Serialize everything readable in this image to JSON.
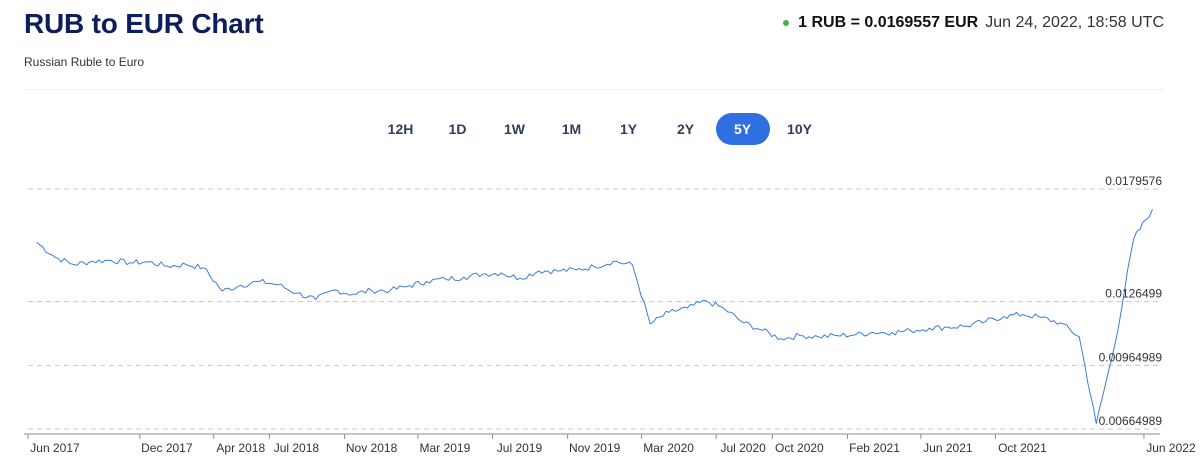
{
  "header": {
    "title": "RUB to EUR Chart",
    "subtitle": "Russian Ruble to Euro",
    "rate_text": "1 RUB = 0.0169557 EUR",
    "timestamp": "Jun 24, 2022, 18:58 UTC",
    "status_color": "#3db34a"
  },
  "ranges": {
    "items": [
      "12H",
      "1D",
      "1W",
      "1M",
      "1Y",
      "2Y",
      "5Y",
      "10Y"
    ],
    "active": "5Y"
  },
  "chart_data": {
    "type": "line",
    "line_color": "#3b7ddd",
    "grid": "horizontal-dashed",
    "y_labels": [
      "0.0179576",
      "0.0126499",
      "0.00964989",
      "0.00664989"
    ],
    "y_values": [
      0.0179576,
      0.0126499,
      0.00964989,
      0.00664989
    ],
    "x_ticks": [
      "Jun 2017",
      "Dec 2017",
      "Apr 2018",
      "Jul 2018",
      "Nov 2018",
      "Mar 2019",
      "Jul 2019",
      "Nov 2019",
      "Mar 2020",
      "Jul 2020",
      "Oct 2020",
      "Feb 2021",
      "Jun 2021",
      "Oct 2021",
      "Jun 2022"
    ],
    "series": [
      {
        "x": [
          "2017-06",
          "2017-07",
          "2017-08",
          "2017-09",
          "2017-10",
          "2017-11",
          "2017-12",
          "2018-01",
          "2018-02",
          "2018-03",
          "2018-04",
          "2018-05",
          "2018-06",
          "2018-07",
          "2018-08",
          "2018-09",
          "2018-10",
          "2018-11",
          "2018-12",
          "2019-01",
          "2019-02",
          "2019-03",
          "2019-04",
          "2019-05",
          "2019-06",
          "2019-07",
          "2019-08",
          "2019-09",
          "2019-10",
          "2019-11",
          "2019-12",
          "2020-01",
          "2020-02",
          "2020-03",
          "2020-04",
          "2020-05",
          "2020-06",
          "2020-07",
          "2020-08",
          "2020-09",
          "2020-10",
          "2020-11",
          "2020-12",
          "2021-01",
          "2021-02",
          "2021-03",
          "2021-04",
          "2021-05",
          "2021-06",
          "2021-07",
          "2021-08",
          "2021-09",
          "2021-10",
          "2021-11",
          "2021-12",
          "2022-01",
          "2022-02",
          "2022-03",
          "2022-04",
          "2022-05",
          "2022-06"
        ],
        "y": [
          0.01545,
          0.01475,
          0.0144,
          0.01455,
          0.0146,
          0.01448,
          0.01452,
          0.01432,
          0.0144,
          0.01425,
          0.01315,
          0.01342,
          0.0136,
          0.01345,
          0.01305,
          0.01275,
          0.0132,
          0.013,
          0.01318,
          0.01318,
          0.0134,
          0.0136,
          0.01372,
          0.0138,
          0.01395,
          0.014,
          0.01375,
          0.0141,
          0.0141,
          0.01415,
          0.0143,
          0.01455,
          0.01438,
          0.0116,
          0.01215,
          0.01235,
          0.01268,
          0.0123,
          0.01165,
          0.0113,
          0.0109,
          0.01105,
          0.011,
          0.01105,
          0.0111,
          0.0112,
          0.0112,
          0.01128,
          0.0114,
          0.01145,
          0.0115,
          0.01172,
          0.01195,
          0.01205,
          0.0119,
          0.01165,
          0.011,
          0.0069,
          0.0107,
          0.0156,
          0.017
        ]
      }
    ]
  }
}
